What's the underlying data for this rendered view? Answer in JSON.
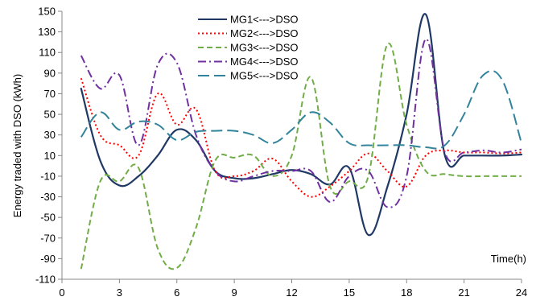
{
  "chart_data": {
    "type": "line",
    "xlabel": "Time(h)",
    "ylabel": "Energy traded with DSO (kWh)",
    "xlim": [
      0,
      24
    ],
    "ylim": [
      -110,
      150
    ],
    "xticks": [
      0,
      3,
      6,
      9,
      12,
      15,
      18,
      21,
      24
    ],
    "yticks": [
      150,
      130,
      110,
      90,
      70,
      50,
      30,
      10,
      -10,
      -30,
      -50,
      -70,
      -90,
      -110
    ],
    "grid": false,
    "legend_position": "top-center",
    "x": [
      1,
      2,
      3,
      4,
      5,
      6,
      7,
      8,
      9,
      10,
      11,
      12,
      13,
      14,
      15,
      16,
      17,
      18,
      19,
      20,
      21,
      22,
      23,
      24
    ],
    "series": [
      {
        "name": "MG1<--->DSO",
        "color": "#1f3864",
        "dash": "solid",
        "values": [
          75,
          5,
          -19,
          -10,
          10,
          35,
          25,
          -5,
          -12,
          -12,
          -8,
          -4,
          -8,
          -18,
          -2,
          -67,
          -20,
          50,
          147,
          10,
          10,
          10,
          10,
          11
        ]
      },
      {
        "name": "MG2<--->DSO",
        "color": "#ff0000",
        "dash": "dotted",
        "values": [
          85,
          30,
          20,
          10,
          70,
          40,
          55,
          -5,
          -10,
          -5,
          7,
          -15,
          -30,
          -20,
          -5,
          12,
          -5,
          -20,
          10,
          15,
          13,
          13,
          12,
          13
        ]
      },
      {
        "name": "MG3<--->DSO",
        "color": "#70ad47",
        "dash": "dashed",
        "values": [
          -100,
          -15,
          -15,
          -2,
          -80,
          -99,
          -60,
          5,
          8,
          10,
          -10,
          10,
          86,
          -20,
          -15,
          -10,
          118,
          40,
          -5,
          -8,
          -10,
          -10,
          -10,
          -10
        ]
      },
      {
        "name": "MG4<--->DSO",
        "color": "#7030a0",
        "dash": "dashdot",
        "values": [
          107,
          75,
          88,
          20,
          98,
          100,
          30,
          -5,
          -15,
          -10,
          -5,
          -5,
          -5,
          -35,
          -10,
          -5,
          -40,
          -10,
          123,
          13,
          13,
          15,
          13,
          16
        ]
      },
      {
        "name": "MG5<--->DSO",
        "color": "#31849b",
        "dash": "longdash",
        "values": [
          28,
          52,
          35,
          43,
          40,
          25,
          33,
          34,
          34,
          30,
          22,
          35,
          52,
          42,
          22,
          20,
          20,
          20,
          18,
          20,
          50,
          88,
          83,
          22
        ]
      }
    ]
  }
}
